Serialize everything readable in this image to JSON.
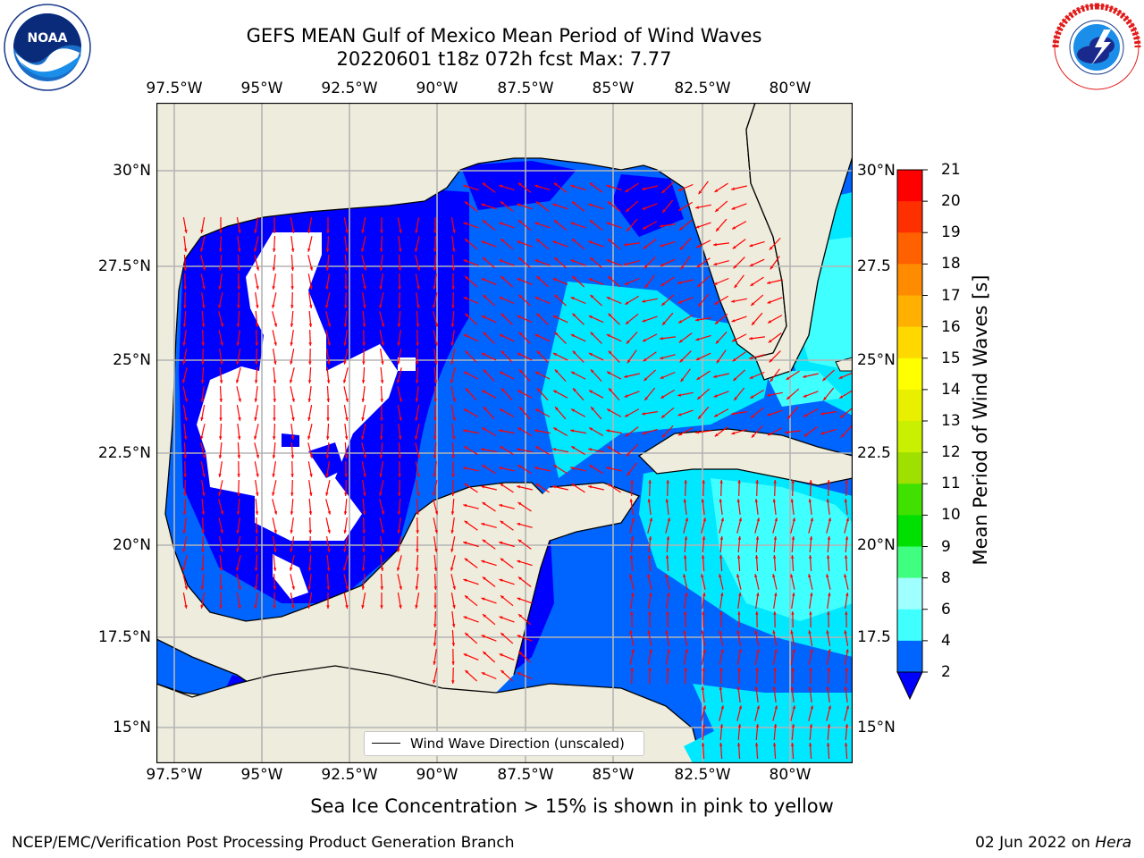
{
  "header": {
    "title_line1": "GEFS MEAN Gulf of Mexico Mean Period of Wind Waves",
    "title_line2": "20220601 t18z 072h fcst   Max: 7.77"
  },
  "logos": {
    "noaa": {
      "text": "NOAA",
      "ring_text": "NATIONAL OCEANIC AND ATMOSPHERIC ADMINISTRATION · U.S. DEPARTMENT OF COMMERCE"
    },
    "nws": {
      "ring_text": "NATIONAL WEATHER SERVICE"
    }
  },
  "map": {
    "lon_ticks": [
      "97.5°W",
      "95°W",
      "92.5°W",
      "90°W",
      "87.5°W",
      "85°W",
      "82.5°W",
      "80°W"
    ],
    "lat_ticks_left": [
      "30°N",
      "27.5°N",
      "25°N",
      "22.5°N",
      "20°N",
      "17.5°N",
      "15°N"
    ],
    "lat_ticks_right": [
      "30°N",
      "27.5",
      "25°N",
      "22.5",
      "20°N",
      "17.5",
      "15°N"
    ],
    "extent": {
      "lon": [
        -98,
        -78.2
      ],
      "lat": [
        14.1,
        31.7
      ]
    },
    "grid": true,
    "max_value": 7.77,
    "land_color": "#eeecdc",
    "legend_text": "Wind Wave Direction (unscaled)",
    "arrow_color": "#ff0000"
  },
  "colorbar": {
    "label": "Mean Period of Wind Waves [s]",
    "ticks": [
      "2",
      "4",
      "6",
      "8",
      "9",
      "10",
      "11",
      "12",
      "13",
      "14",
      "15",
      "16",
      "17",
      "18",
      "19",
      "20",
      "21"
    ],
    "colors": [
      "#0064ff",
      "#00e8ff",
      "#40ffff",
      "#a0ffff",
      "#40ff80",
      "#00e000",
      "#40e000",
      "#a0e000",
      "#c8f000",
      "#e8f000",
      "#ffff00",
      "#ffd800",
      "#ffb000",
      "#ff8c00",
      "#ff6000",
      "#ff3000",
      "#ff0000"
    ],
    "under_color": "#0000ff"
  },
  "footer": {
    "note": "Sea Ice Concentration > 15% is shown in pink to yellow",
    "left": "NCEP/EMC/Verification Post Processing Product Generation Branch",
    "right_date": "02 Jun 2022 on",
    "right_host": "Hera"
  }
}
